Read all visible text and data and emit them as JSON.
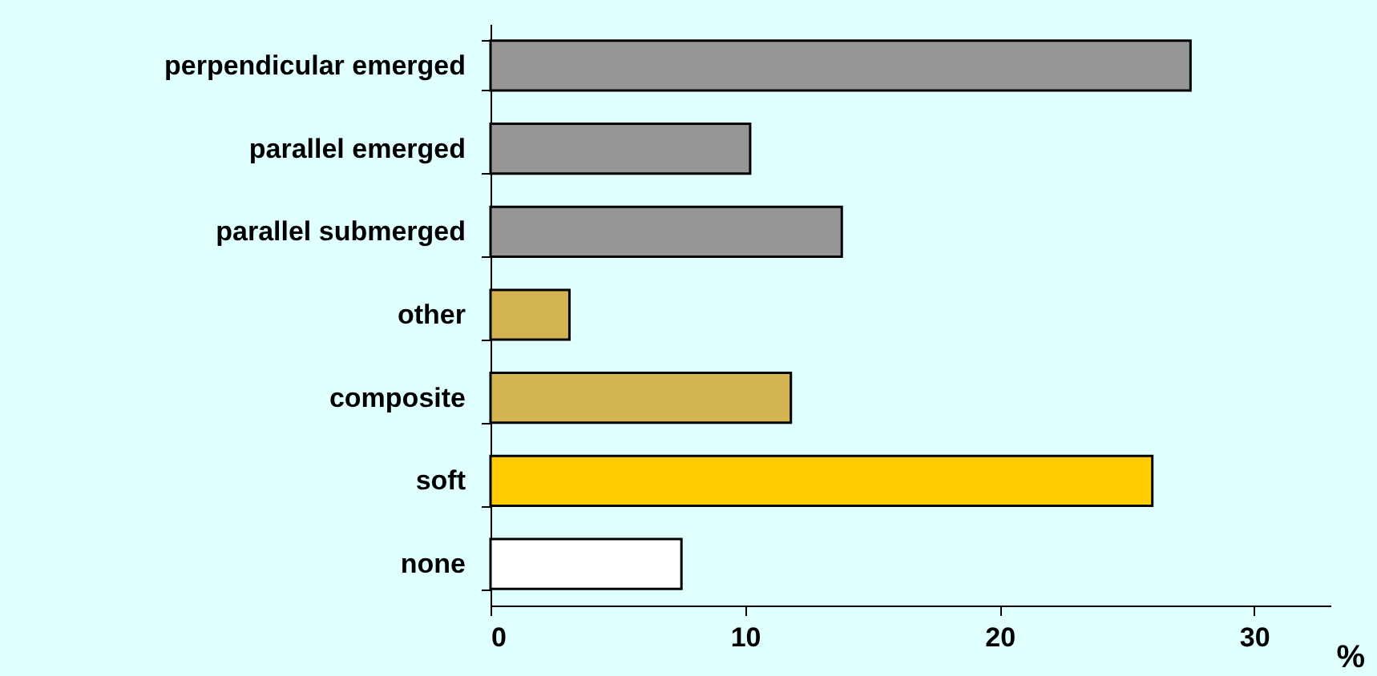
{
  "chart_data": {
    "type": "bar",
    "orientation": "horizontal",
    "xlabel": "%",
    "categories": [
      "perpendicular emerged",
      "parallel emerged",
      "parallel submerged",
      "other",
      "composite",
      "soft",
      "none"
    ],
    "values": [
      27.5,
      10.2,
      13.8,
      3.1,
      11.8,
      26.0,
      7.5
    ],
    "colors": [
      "#969696",
      "#969696",
      "#969696",
      "#d4b450",
      "#d4b450",
      "#ffcc00",
      "#ffffff"
    ],
    "xlim": [
      0,
      33
    ],
    "xticks": [
      0,
      10,
      20,
      30
    ],
    "grid": false
  }
}
